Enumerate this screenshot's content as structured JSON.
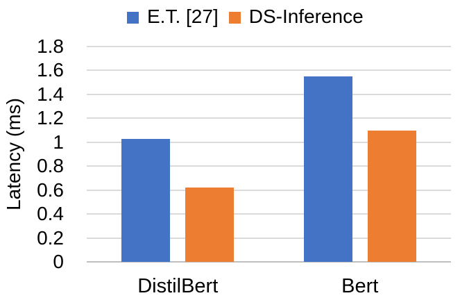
{
  "chart_data": {
    "type": "bar",
    "title": "",
    "categories": [
      "DistilBert",
      "Bert"
    ],
    "series": [
      {
        "name": "E.T. [27]",
        "color": "#4472C4",
        "values": [
          1.03,
          1.55
        ]
      },
      {
        "name": "DS-Inference",
        "color": "#ED7D31",
        "values": [
          0.62,
          1.1
        ]
      }
    ],
    "xlabel": "",
    "ylabel": "Latency (ms)",
    "ylim": [
      0,
      1.8
    ],
    "ytick_step": 0.2,
    "yticks": [
      "0",
      "0.2",
      "0.4",
      "0.6",
      "0.8",
      "1",
      "1.2",
      "1.4",
      "1.6",
      "1.8"
    ],
    "grid": "horizontal-only",
    "legend_position": "top-center",
    "colors": {
      "gridline": "#DADADA",
      "axis_line": "#BFBFBF",
      "text": "#000000",
      "background": "#FFFFFF"
    }
  }
}
